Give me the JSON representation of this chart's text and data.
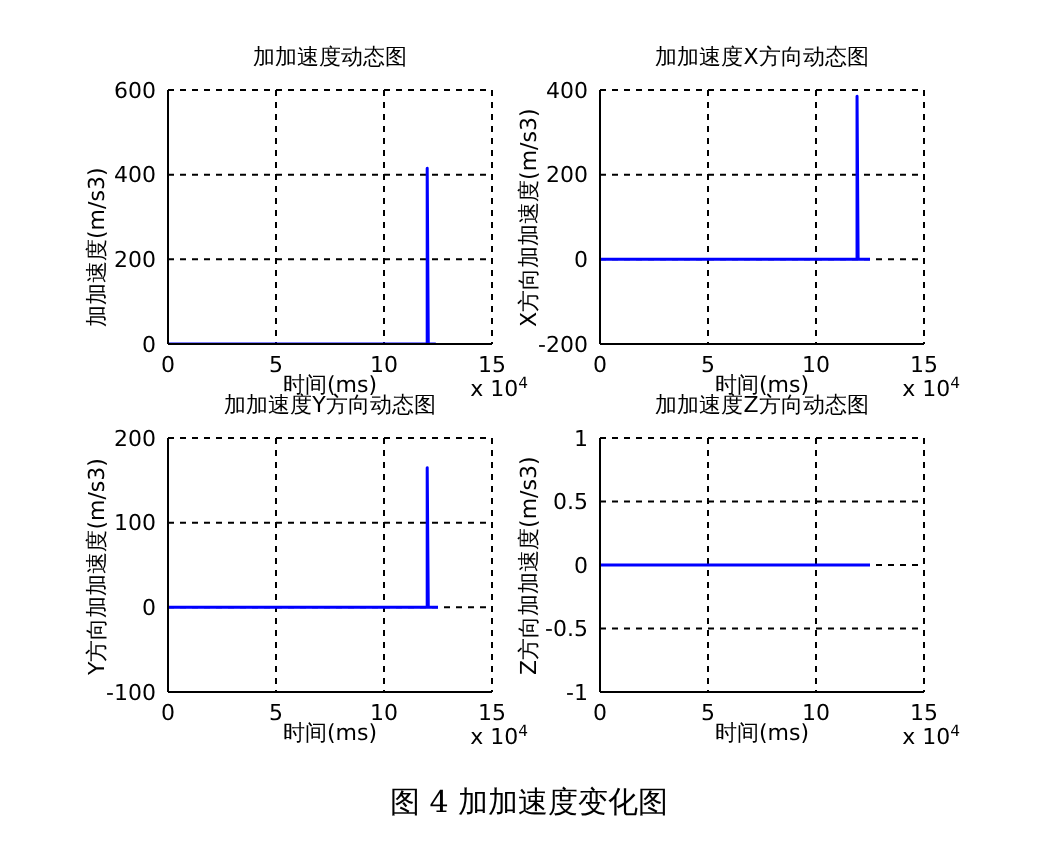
{
  "chart_data": [
    {
      "type": "line",
      "title": "加加速度动态图",
      "xlabel": "时间(ms)",
      "ylabel": "加加速度(m/s3)",
      "xlim": [
        0,
        15
      ],
      "xticks": [
        0,
        5,
        10,
        15
      ],
      "ylim": [
        0,
        600
      ],
      "yticks": [
        0,
        200,
        400,
        600
      ],
      "grid": true,
      "marker": "none",
      "line_style": "solid",
      "annotations": [
        "x 10$^{4}$"
      ],
      "series": [
        {
          "color": "#0000ff",
          "x": [
            0,
            12,
            12,
            12.05,
            12.4
          ],
          "values": [
            0,
            0,
            415,
            0,
            0
          ]
        }
      ]
    },
    {
      "type": "line",
      "title": "加加速度X方向动态图",
      "xlabel": "时间(ms)",
      "ylabel": "X方向加加速度(m/s3)",
      "xlim": [
        0,
        15
      ],
      "xticks": [
        0,
        5,
        10,
        15
      ],
      "ylim": [
        -200,
        400
      ],
      "yticks": [
        -200,
        0,
        200,
        400
      ],
      "grid": true,
      "marker": "none",
      "line_style": "solid",
      "annotations": [
        "x 10$^{4}$"
      ],
      "series": [
        {
          "color": "#0000ff",
          "x": [
            0,
            11.9,
            11.9,
            11.95,
            12.5
          ],
          "values": [
            0,
            0,
            385,
            0,
            0
          ]
        }
      ]
    },
    {
      "type": "line",
      "title": "加加速度Y方向动态图",
      "xlabel": "时间(ms)",
      "ylabel": "Y方向加加速度(m/s3)",
      "xlim": [
        0,
        15
      ],
      "xticks": [
        0,
        5,
        10,
        15
      ],
      "ylim": [
        -100,
        200
      ],
      "yticks": [
        -100,
        0,
        100,
        200
      ],
      "grid": true,
      "marker": "none",
      "line_style": "solid",
      "annotations": [
        "x 10$^{4}$"
      ],
      "series": [
        {
          "color": "#0000ff",
          "x": [
            0,
            12,
            12,
            12.05,
            12.5
          ],
          "values": [
            0,
            0,
            165,
            0,
            0
          ]
        }
      ]
    },
    {
      "type": "line",
      "title": "加加速度Z方向动态图",
      "xlabel": "时间(ms)",
      "ylabel": "Z方向加加速度(m/s3)",
      "xlim": [
        0,
        15
      ],
      "xticks": [
        0,
        5,
        10,
        15
      ],
      "ylim": [
        -1,
        1
      ],
      "yticks": [
        -1,
        -0.5,
        0,
        0.5,
        1
      ],
      "grid": true,
      "marker": "none",
      "line_style": "solid",
      "annotations": [
        "x 10$^{4}$",
        "图 4  加加速度变化图"
      ],
      "series": [
        {
          "color": "#0000ff",
          "x": [
            0,
            12.5
          ],
          "values": [
            0,
            0
          ]
        }
      ]
    }
  ]
}
